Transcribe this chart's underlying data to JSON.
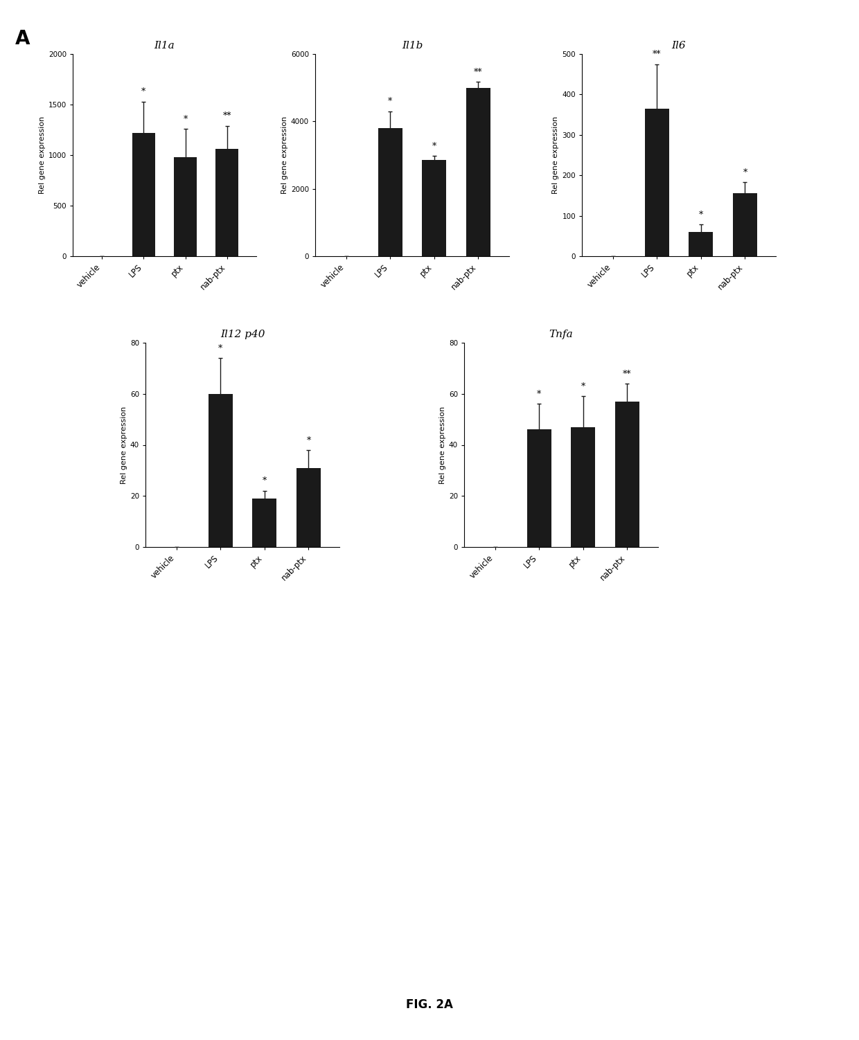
{
  "panel_label": "A",
  "figure_label": "FIG. 2A",
  "bar_color": "#1a1a1a",
  "bar_width": 0.55,
  "error_color": "#1a1a1a",
  "background_color": "#ffffff",
  "categories": [
    "vehicle",
    "LPS",
    "ptx",
    "nab-ptx"
  ],
  "plots": [
    {
      "title": "Il1a",
      "ylabel": "Rel gene expression",
      "ylim": [
        0,
        2000
      ],
      "yticks": [
        0,
        500,
        1000,
        1500,
        2000
      ],
      "values": [
        0,
        1220,
        980,
        1060
      ],
      "errors": [
        0,
        310,
        280,
        230
      ],
      "sig": [
        "",
        "*",
        "*",
        "**"
      ]
    },
    {
      "title": "Il1b",
      "ylabel": "Rel gene expression",
      "ylim": [
        0,
        6000
      ],
      "yticks": [
        0,
        2000,
        4000,
        6000
      ],
      "values": [
        0,
        3800,
        2850,
        5000
      ],
      "errors": [
        0,
        500,
        120,
        180
      ],
      "sig": [
        "",
        "*",
        "*",
        "**"
      ]
    },
    {
      "title": "Il6",
      "ylabel": "Rel gene expression",
      "ylim": [
        0,
        500
      ],
      "yticks": [
        0,
        100,
        200,
        300,
        400,
        500
      ],
      "values": [
        0,
        365,
        60,
        155
      ],
      "errors": [
        0,
        110,
        18,
        28
      ],
      "sig": [
        "",
        "**",
        "*",
        "*"
      ]
    },
    {
      "title": "Il12 p40",
      "ylabel": "Rel gene expression",
      "ylim": [
        0,
        80
      ],
      "yticks": [
        0,
        20,
        40,
        60,
        80
      ],
      "values": [
        0,
        60,
        19,
        31
      ],
      "errors": [
        0,
        14,
        3,
        7
      ],
      "sig": [
        "",
        "*",
        "*",
        "*"
      ]
    },
    {
      "title": "Tnfa",
      "ylabel": "Rel gene expression",
      "ylim": [
        0,
        80
      ],
      "yticks": [
        0,
        20,
        40,
        60,
        80
      ],
      "values": [
        0,
        46,
        47,
        57
      ],
      "errors": [
        0,
        10,
        12,
        7
      ],
      "sig": [
        "",
        "*",
        "*",
        "**"
      ]
    }
  ]
}
